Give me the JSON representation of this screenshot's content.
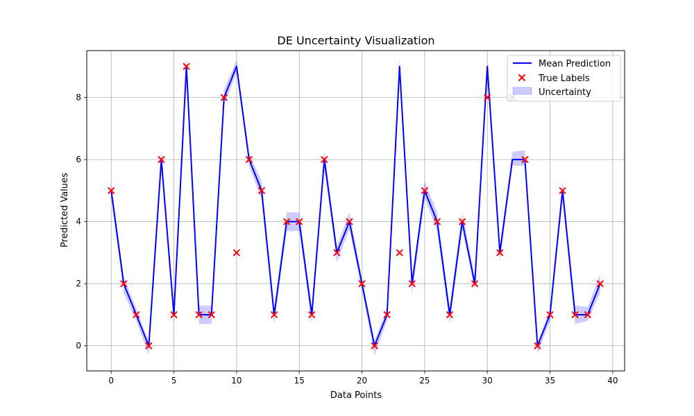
{
  "chart_data": {
    "type": "line",
    "title": "DE Uncertainty Visualization",
    "xlabel": "Data Points",
    "ylabel": "Predicted Values",
    "xlim": [
      -1.95,
      40.95
    ],
    "ylim": [
      -0.81,
      9.51
    ],
    "xticks": [
      0,
      5,
      10,
      15,
      20,
      25,
      30,
      35,
      40
    ],
    "yticks": [
      0,
      2,
      4,
      6,
      8
    ],
    "grid": true,
    "legend_position": "top-right",
    "x": [
      0,
      1,
      2,
      3,
      4,
      5,
      6,
      7,
      8,
      9,
      10,
      11,
      12,
      13,
      14,
      15,
      16,
      17,
      18,
      19,
      20,
      21,
      22,
      23,
      24,
      25,
      26,
      27,
      28,
      29,
      30,
      31,
      32,
      33,
      34,
      35,
      36,
      37,
      38,
      39
    ],
    "series": [
      {
        "name": "Mean Prediction",
        "kind": "line",
        "color": "#0000ff",
        "values": [
          5,
          2,
          1,
          0,
          6,
          1,
          9,
          1,
          1,
          8,
          9,
          6,
          5,
          1,
          4,
          4,
          1,
          6,
          3,
          4,
          2,
          0,
          1,
          9,
          2,
          5,
          4,
          1,
          4,
          2,
          9,
          3,
          6,
          6,
          0,
          1,
          5,
          1,
          1,
          2
        ]
      },
      {
        "name": "True Labels",
        "kind": "scatter",
        "marker": "x",
        "color": "#ff0000",
        "values": [
          5,
          2,
          1,
          0,
          6,
          1,
          9,
          1,
          1,
          8,
          3,
          6,
          5,
          1,
          4,
          4,
          1,
          6,
          3,
          4,
          2,
          0,
          1,
          3,
          2,
          5,
          4,
          1,
          4,
          2,
          8,
          3,
          8,
          6,
          0,
          1,
          5,
          1,
          1,
          2
        ]
      },
      {
        "name": "Uncertainty",
        "kind": "band",
        "color": "#0000ff",
        "lower": [
          4.75,
          1.7,
          0.8,
          -0.3,
          5.7,
          0.8,
          8.7,
          0.7,
          0.7,
          7.75,
          8.8,
          5.8,
          4.7,
          0.7,
          3.7,
          3.7,
          0.7,
          5.75,
          2.7,
          3.75,
          1.8,
          -0.3,
          0.8,
          8.75,
          1.65,
          4.75,
          3.7,
          0.7,
          3.75,
          1.8,
          8.75,
          2.7,
          5.8,
          5.8,
          -0.25,
          0.8,
          4.75,
          0.7,
          0.8,
          1.7
        ],
        "upper": [
          5.25,
          2.2,
          1.2,
          0.1,
          6.3,
          1.2,
          9.3,
          1.3,
          1.3,
          8.25,
          9.2,
          6.2,
          5.3,
          1.2,
          4.3,
          4.3,
          1.2,
          6.3,
          3.2,
          4.3,
          2.2,
          0.15,
          1.2,
          9.25,
          2.2,
          5.3,
          4.3,
          1.25,
          4.3,
          2.2,
          9.2,
          3.2,
          6.25,
          6.3,
          0.1,
          1.2,
          5.3,
          1.3,
          1.25,
          2.3
        ]
      }
    ]
  }
}
